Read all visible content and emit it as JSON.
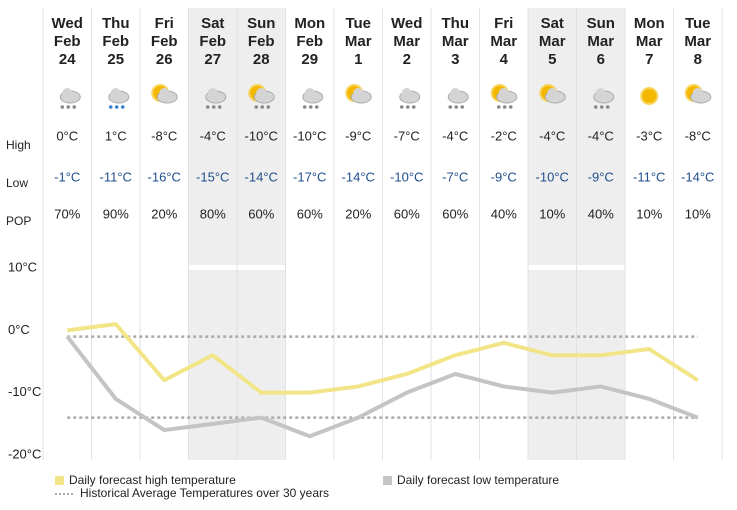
{
  "row_labels": {
    "high": "High",
    "low": "Low",
    "pop": "POP"
  },
  "pop": [
    "70%",
    "90%",
    "20%",
    "80%",
    "60%",
    "60%",
    "20%",
    "60%",
    "60%",
    "40%",
    "10%",
    "40%",
    "10%",
    "10%"
  ],
  "chart_data": {
    "type": "line",
    "categories": [
      [
        "Wed",
        "Feb",
        "24"
      ],
      [
        "Thu",
        "Feb",
        "25"
      ],
      [
        "Fri",
        "Feb",
        "26"
      ],
      [
        "Sat",
        "Feb",
        "27"
      ],
      [
        "Sun",
        "Feb",
        "28"
      ],
      [
        "Mon",
        "Feb",
        "29"
      ],
      [
        "Tue",
        "Mar",
        "1"
      ],
      [
        "Wed",
        "Mar",
        "2"
      ],
      [
        "Thu",
        "Mar",
        "3"
      ],
      [
        "Fri",
        "Mar",
        "4"
      ],
      [
        "Sat",
        "Mar",
        "5"
      ],
      [
        "Sun",
        "Mar",
        "6"
      ],
      [
        "Mon",
        "Mar",
        "7"
      ],
      [
        "Tue",
        "Mar",
        "8"
      ]
    ],
    "icons": [
      "cloud-snow",
      "cloud-sleet",
      "sun-cloud",
      "cloud-snow",
      "sun-cloud-snow",
      "cloud-snow",
      "sun-cloud",
      "cloud-snow",
      "cloud-snow",
      "sun-cloud-snow",
      "sun-cloud",
      "cloud-snow",
      "sun",
      "sun-cloud"
    ],
    "shaded_columns": [
      3,
      4,
      10,
      11
    ],
    "series": [
      {
        "name": "Daily forecast high temperature",
        "color": "#f2e588",
        "values": [
          0,
          1,
          -8,
          -4,
          -10,
          -10,
          -9,
          -7,
          -4,
          -2,
          -4,
          -4,
          -3,
          -8
        ],
        "value_labels": [
          "0°C",
          "1°C",
          "-8°C",
          "-4°C",
          "-10°C",
          "-10°C",
          "-9°C",
          "-7°C",
          "-4°C",
          "-2°C",
          "-4°C",
          "-4°C",
          "-3°C",
          "-8°C"
        ]
      },
      {
        "name": "Daily forecast low temperature",
        "color": "#c4c4c4",
        "label_color": "#1f4e8c",
        "values": [
          -1,
          -11,
          -16,
          -15,
          -14,
          -17,
          -14,
          -10,
          -7,
          -9,
          -10,
          -9,
          -11,
          -14
        ],
        "value_labels": [
          "-1°C",
          "-11°C",
          "-16°C",
          "-15°C",
          "-14°C",
          "-17°C",
          "-14°C",
          "-10°C",
          "-7°C",
          "-9°C",
          "-10°C",
          "-9°C",
          "-11°C",
          "-14°C"
        ]
      }
    ],
    "reference_lines": {
      "name": "Historical Average Temperatures over 30 years",
      "color": "#aaaaaa",
      "values": [
        -1,
        -14
      ]
    },
    "ylim": [
      -20,
      10
    ],
    "yticks": [
      {
        "value": 10,
        "label": "10°C"
      },
      {
        "value": 0,
        "label": "0°C"
      },
      {
        "value": -10,
        "label": "-10°C"
      },
      {
        "value": -20,
        "label": "-20°C"
      }
    ]
  }
}
